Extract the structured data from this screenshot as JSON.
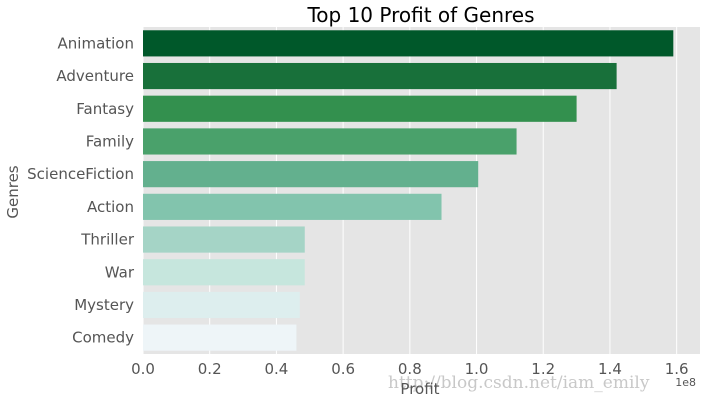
{
  "chart_data": {
    "type": "bar",
    "orientation": "horizontal",
    "title": "Top 10 Profit of Genres",
    "xlabel": "Profit",
    "ylabel": "Genres",
    "x_offset_label": "1e8",
    "categories": [
      "Animation",
      "Adventure",
      "Fantasy",
      "Family",
      "ScienceFiction",
      "Action",
      "Thriller",
      "War",
      "Mystery",
      "Comedy"
    ],
    "values": [
      1.59,
      1.42,
      1.3,
      1.12,
      1.005,
      0.895,
      0.485,
      0.485,
      0.47,
      0.46
    ],
    "value_scale": 100000000,
    "xlim": [
      0,
      1.67
    ],
    "xticks": [
      "0.0",
      "0.2",
      "0.4",
      "0.6",
      "0.8",
      "1.0",
      "1.2",
      "1.4",
      "1.6"
    ],
    "grid": true,
    "colors": [
      "#00582a",
      "#18703a",
      "#33904e",
      "#4aa16b",
      "#63b08e",
      "#82c4ad",
      "#a5d4c6",
      "#c6e6dd",
      "#ddeeee",
      "#eef5f8"
    ],
    "background_color": "#e5e5e5",
    "grid_color": "#ffffff"
  },
  "watermark": "http://blog.csdn.net/iam_emily"
}
